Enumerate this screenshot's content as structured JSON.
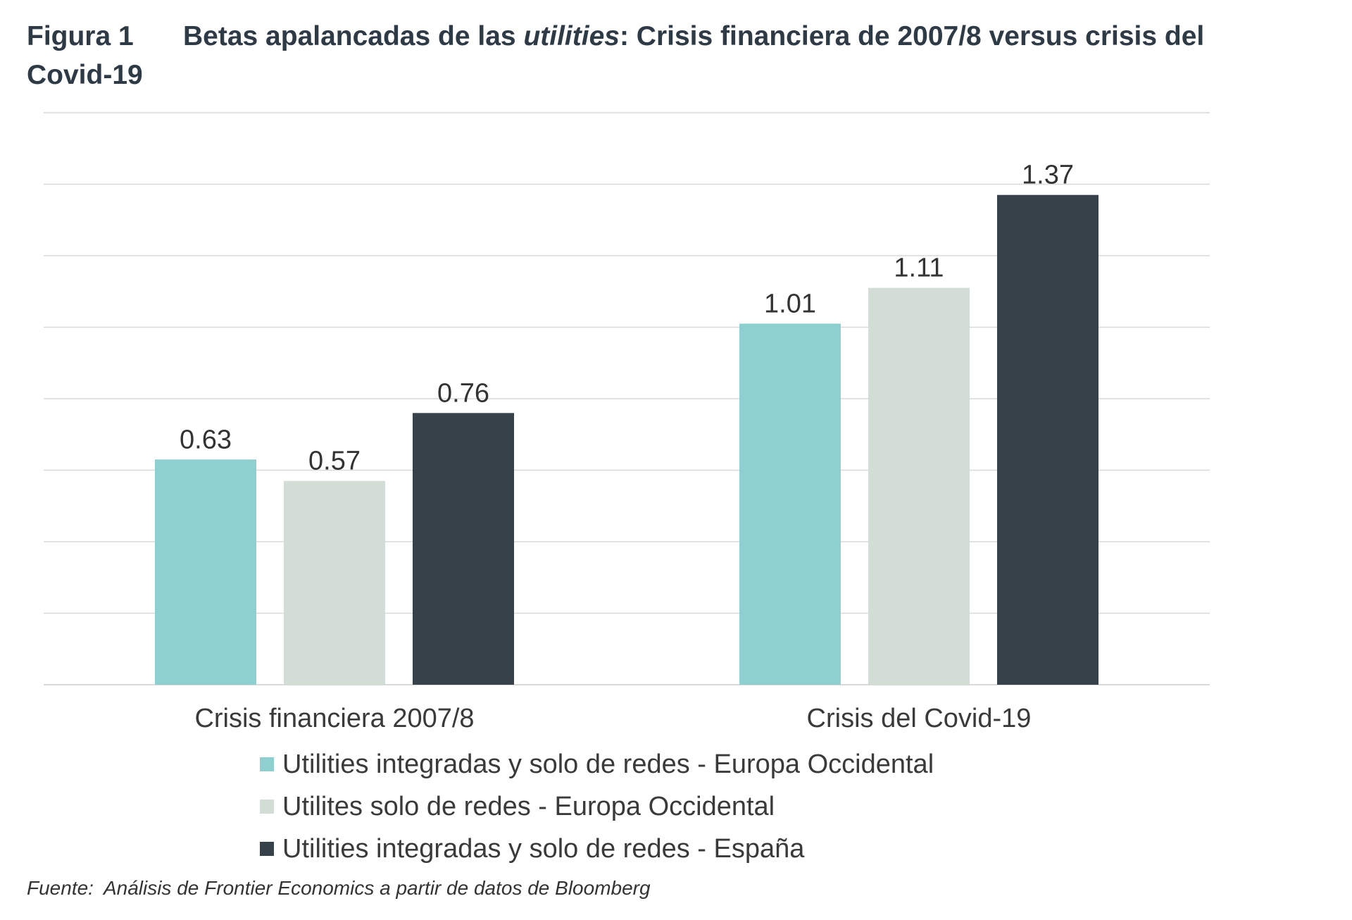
{
  "figure": {
    "label": "Figura 1",
    "title_before": "Betas apalancadas de las ",
    "title_italic": "utilities",
    "title_after": ": Crisis financiera de 2007/8 versus crisis del Covid-19"
  },
  "source": {
    "label": "Fuente:",
    "text": "Análisis de Frontier Economics a partir de datos de Bloomberg"
  },
  "colors": {
    "series1": "#8dd0cf",
    "series2": "#d2ddd5",
    "series3": "#37414a",
    "grid": "#d9d9d9"
  },
  "chart_data": {
    "type": "bar",
    "title": "Betas apalancadas de las utilities: Crisis financiera de 2007/8 versus crisis del Covid-19",
    "xlabel": "",
    "ylabel": "",
    "ylim": [
      0,
      1.6
    ],
    "grid": true,
    "legend_position": "bottom",
    "categories": [
      "Crisis financiera 2007/8",
      "Crisis del Covid-19"
    ],
    "series": [
      {
        "name": "Utilities integradas y solo de redes - Europa Occidental",
        "values": [
          0.63,
          1.01
        ],
        "labels": [
          "0.63",
          "1.01"
        ],
        "color": "#8dd0cf"
      },
      {
        "name": "Utilites solo de redes - Europa Occidental",
        "values": [
          0.57,
          1.11
        ],
        "labels": [
          "0.57",
          "1.11"
        ],
        "color": "#d2ddd5"
      },
      {
        "name": "Utilities integradas y solo de redes - España",
        "values": [
          0.76,
          1.37
        ],
        "labels": [
          "0.76",
          "1.37"
        ],
        "color": "#37414a"
      }
    ]
  }
}
